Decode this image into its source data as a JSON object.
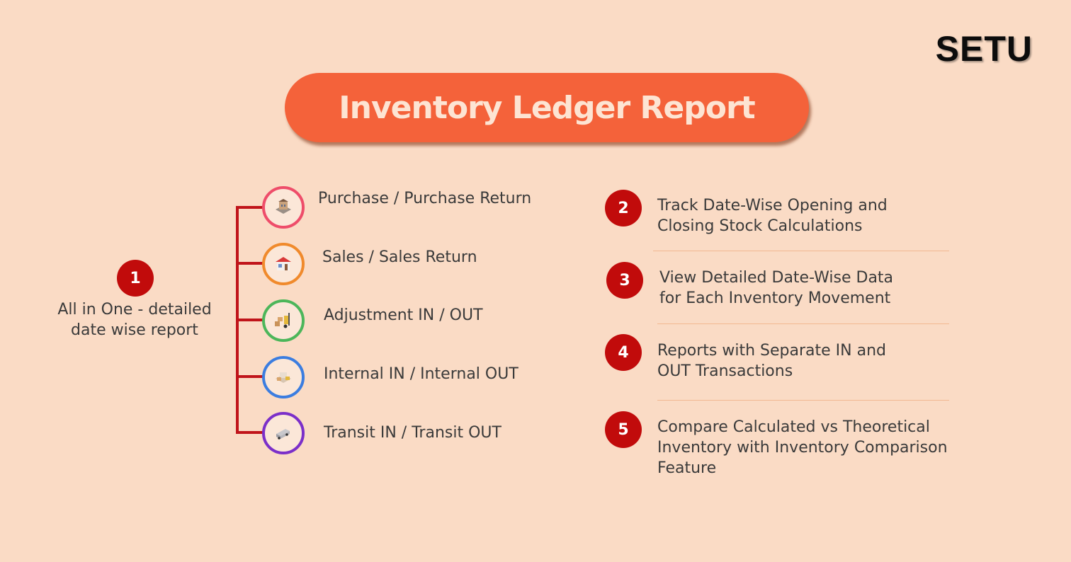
{
  "brand": {
    "logo_text": "SETU"
  },
  "header": {
    "title": "Inventory Ledger Report"
  },
  "left_block": {
    "number": "1",
    "description_line1": "All in One - detailed",
    "description_line2": "date wise report"
  },
  "categories": [
    {
      "label": "Purchase / Purchase Return",
      "icon": "shop-building-icon",
      "ring_color": "#ee4d6a"
    },
    {
      "label": "Sales / Sales Return",
      "icon": "store-icon",
      "ring_color": "#f08a2c"
    },
    {
      "label": "Adjustment IN / OUT",
      "icon": "forklift-boxes-icon",
      "ring_color": "#4cb65a"
    },
    {
      "label": "Internal IN / Internal OUT",
      "icon": "internal-transfer-icon",
      "ring_color": "#3b7de0"
    },
    {
      "label": "Transit IN / Transit OUT",
      "icon": "delivery-truck-icon",
      "ring_color": "#7b2fc9"
    }
  ],
  "features": [
    {
      "number": "2",
      "line1": "Track Date-Wise Opening and",
      "line2": "Closing Stock Calculations"
    },
    {
      "number": "3",
      "line1": "View Detailed Date-Wise Data",
      "line2": "for Each Inventory Movement"
    },
    {
      "number": "4",
      "line1": "Reports with Separate IN and",
      "line2": "OUT Transactions"
    },
    {
      "number": "5",
      "line1": "Compare Calculated vs Theoretical",
      "line2": "Inventory with Inventory Comparison",
      "line3": "Feature"
    }
  ],
  "colors": {
    "background": "#fadbc5",
    "title_pill": "#f4623a",
    "number_badge": "#c10b0b",
    "bracket": "#c0141a"
  }
}
